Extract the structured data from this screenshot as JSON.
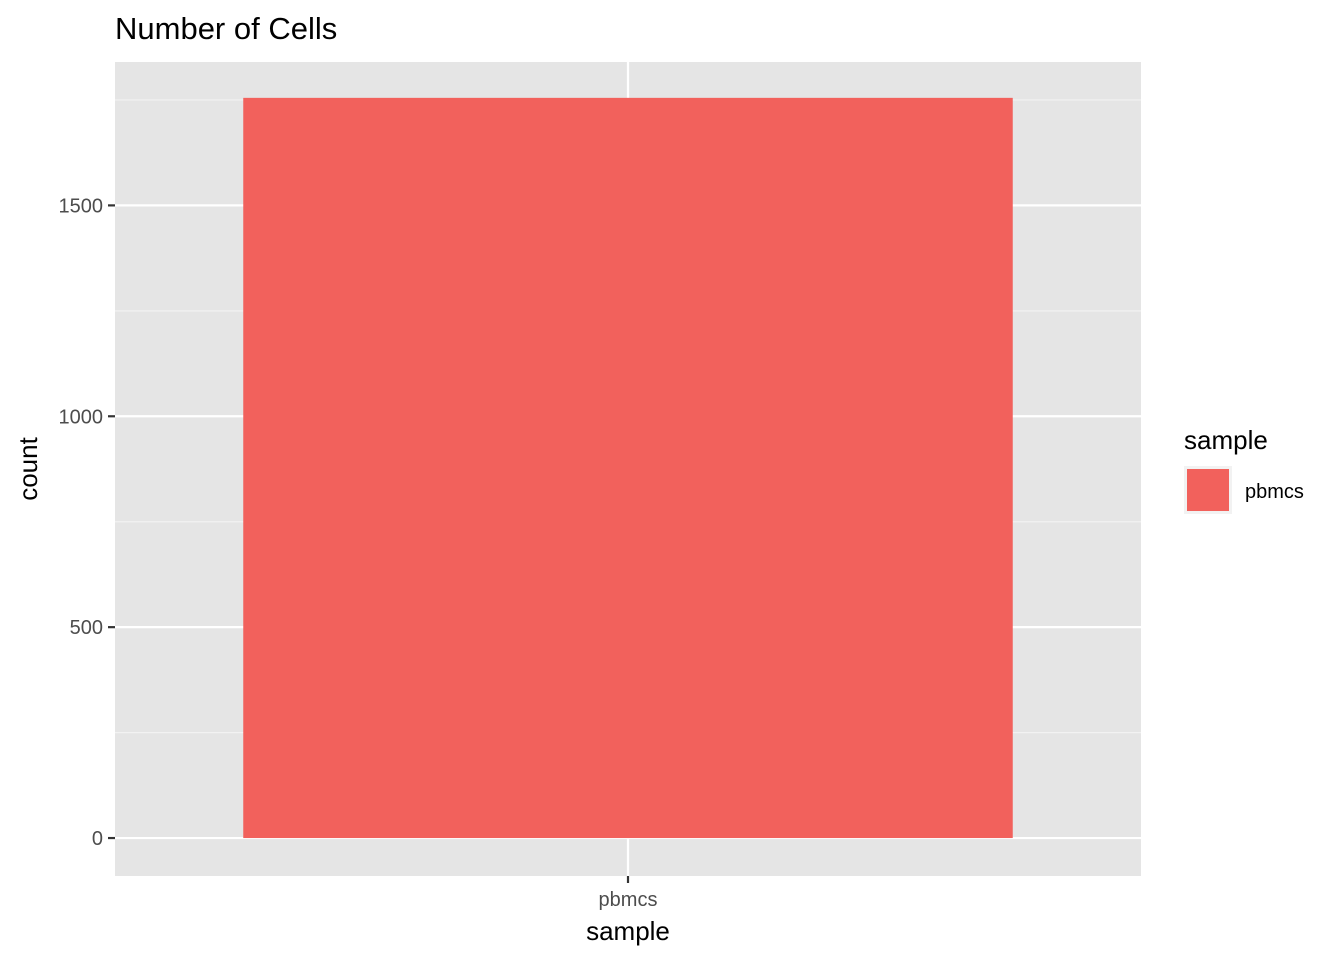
{
  "chart_data": {
    "type": "bar",
    "title": "Number of Cells",
    "xlabel": "sample",
    "ylabel": "count",
    "categories": [
      "pbmcs"
    ],
    "values": [
      1755
    ],
    "ylim": [
      -90,
      1840
    ],
    "yticks": [
      0,
      500,
      1000,
      1500
    ],
    "ytick_labels": [
      "0",
      "500",
      "1000",
      "1500"
    ],
    "colors": {
      "pbmcs": "#F2615C"
    },
    "panel_background": "#E5E5E5",
    "grid": true,
    "legend": {
      "title": "sample",
      "placement": "right",
      "entries": [
        {
          "label": "pbmcs",
          "color": "#F2615C"
        }
      ]
    }
  }
}
